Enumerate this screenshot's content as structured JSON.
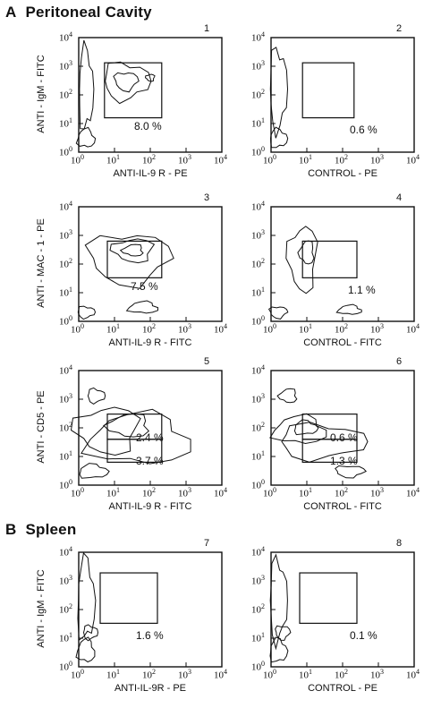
{
  "sections": [
    {
      "letter": "A",
      "title": "Peritoneal Cavity"
    },
    {
      "letter": "B",
      "title": "Spleen"
    }
  ],
  "axis_ticks": {
    "base": "10",
    "exponents": [
      "0",
      "1",
      "2",
      "3",
      "4"
    ]
  },
  "panels": [
    {
      "number": "1",
      "ylabel": "ANTI - IgM - FITC",
      "xlabel": "ANTI-IL-9 R - PE",
      "gates": [
        "8.0 %"
      ]
    },
    {
      "number": "2",
      "ylabel": "",
      "xlabel": "CONTROL - PE",
      "gates": [
        "0.6 %"
      ]
    },
    {
      "number": "3",
      "ylabel": "ANTI - MAC - 1 - PE",
      "xlabel": "ANTI-IL-9 R - FITC",
      "gates": [
        "7.5 %"
      ]
    },
    {
      "number": "4",
      "ylabel": "",
      "xlabel": "CONTROL - FITC",
      "gates": [
        "1.1 %"
      ]
    },
    {
      "number": "5",
      "ylabel": "ANTI - CD5 - PE",
      "xlabel": "ANTI-IL-9 R - FITC",
      "gates": [
        "2.4 %",
        "3.7 %"
      ]
    },
    {
      "number": "6",
      "ylabel": "",
      "xlabel": "CONTROL - FITC",
      "gates": [
        "0.6 %",
        "1.3 %"
      ]
    },
    {
      "number": "7",
      "ylabel": "ANTI - IgM - FITC",
      "xlabel": "ANTI-IL-9R - PE",
      "gates": [
        "1.6 %"
      ]
    },
    {
      "number": "8",
      "ylabel": "",
      "xlabel": "CONTROL - PE",
      "gates": [
        "0.1 %"
      ]
    }
  ]
}
